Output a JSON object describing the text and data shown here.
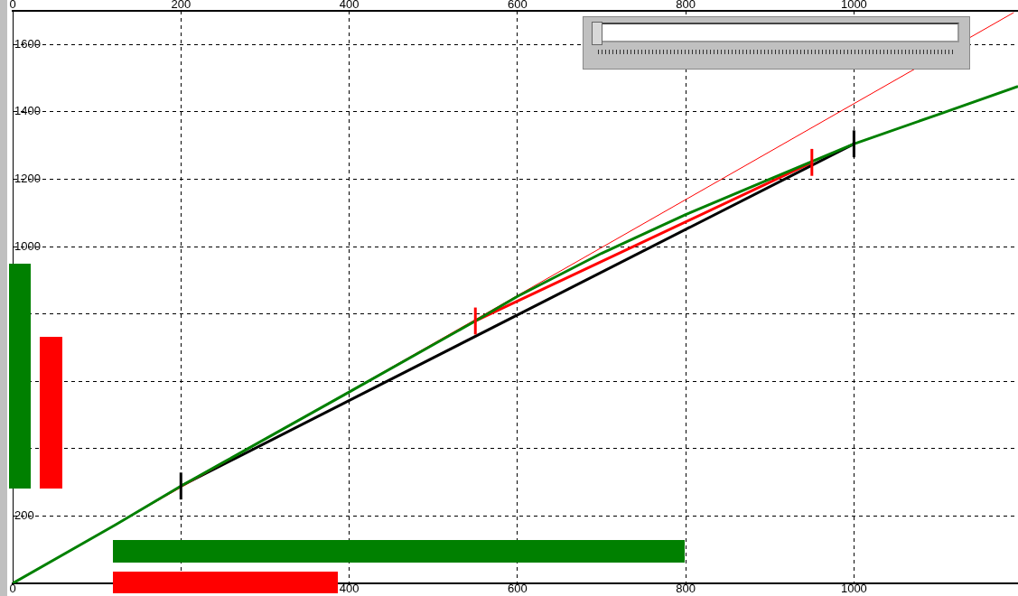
{
  "chart_data": {
    "type": "line",
    "xlim": [
      0,
      1195
    ],
    "xticks": [
      0,
      {
        "value": 200,
        "label": null
      },
      400,
      600,
      800,
      1000
    ],
    "x2lim": [
      0,
      1195
    ],
    "x2ticks": [
      0,
      200,
      400,
      600,
      800,
      1000
    ],
    "ylim": [
      0,
      1700
    ],
    "yticks": [
      {
        "value": 0,
        "label": null
      },
      200,
      {
        "value": 400,
        "label": null
      },
      {
        "value": 600,
        "label": null
      },
      {
        "value": 800,
        "label": null
      },
      1000,
      1200,
      1400,
      1600
    ],
    "grid": true,
    "legend": false,
    "line_style": "solid",
    "series": [
      {
        "color": "#008000",
        "x": [
          0,
          123,
          200,
          400,
          550,
          600,
          700,
          800,
          900,
          1000,
          1100,
          1195
        ],
        "values": [
          0,
          175,
          289,
          568,
          779,
          852,
          980,
          1095,
          1200,
          1305,
          1392,
          1476
        ]
      },
      {
        "color": "#ff0000",
        "x": [
          0,
          1190
        ],
        "values": [
          0,
          1695
        ]
      },
      {
        "color": "#000000",
        "x": [
          200,
          1000
        ],
        "values": [
          289,
          1305
        ],
        "errors": [
          40,
          40
        ]
      },
      {
        "color": "#ff0000",
        "x": [
          550,
          950
        ],
        "values": [
          779,
          1250
        ],
        "errors": [
          40,
          40
        ]
      }
    ]
  }
}
